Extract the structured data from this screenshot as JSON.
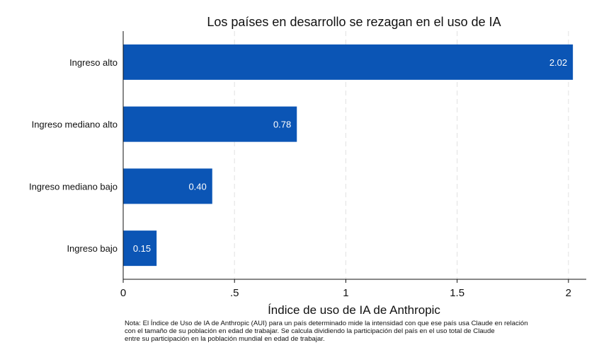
{
  "chart_data": {
    "type": "bar",
    "orientation": "horizontal",
    "title": "Los países en desarrollo se rezagan en el uso de IA",
    "xlabel": "Índice de uso de IA de Anthropic",
    "ylabel": "",
    "categories": [
      "Ingreso alto",
      "Ingreso mediano alto",
      "Ingreso mediano bajo",
      "Ingreso bajo"
    ],
    "values": [
      2.02,
      0.78,
      0.4,
      0.15
    ],
    "value_labels": [
      "2.02",
      "0.78",
      "0.40",
      "0.15"
    ],
    "xlim": [
      0,
      2.08
    ],
    "xticks": [
      0,
      0.5,
      1,
      1.5,
      2
    ],
    "xtick_labels": [
      "0",
      ".5",
      "1",
      "1.5",
      "2"
    ],
    "grid": "vertical dashed",
    "bar_color": "#0b55b5"
  },
  "note": [
    "Nota: El Índice de Uso de IA de Anthropic (AUI) para un país determinado mide la intensidad con que ese país usa Claude en relación",
    "con el tamaño de su población en edad de trabajar. Se calcula dividiendo la participación del país en el uso total de Claude",
    "entre su participación en la población mundial en edad de trabajar."
  ]
}
